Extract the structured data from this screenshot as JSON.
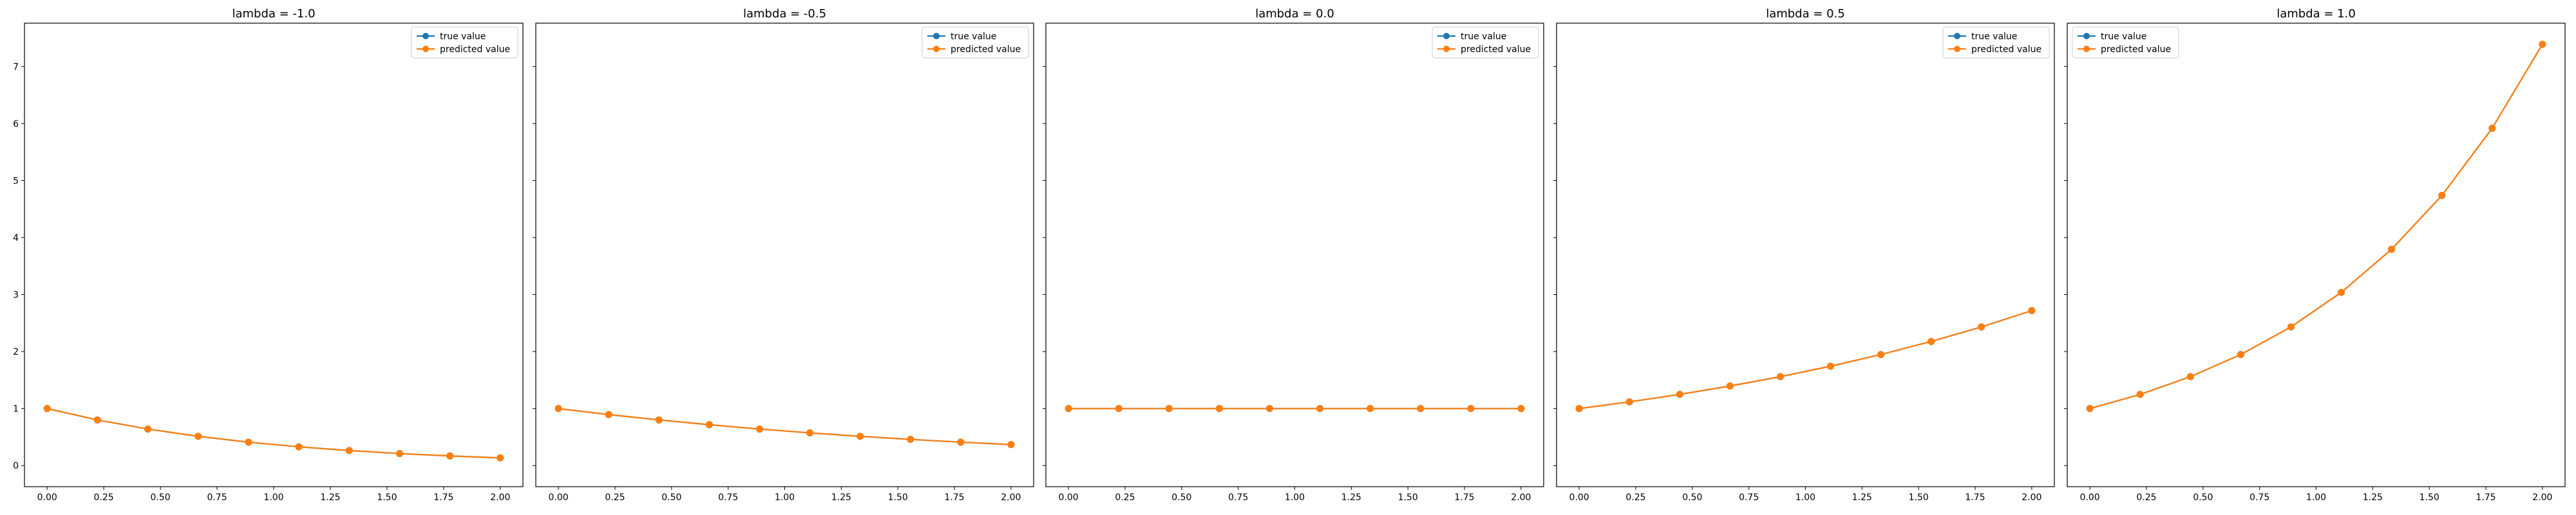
{
  "colors": {
    "true_value": "#1f77b4",
    "predicted_value": "#ff7f0e",
    "axes": "#000000",
    "legend_border": "#cccccc"
  },
  "chart_data": [
    {
      "type": "line",
      "title": "lambda = -1.0",
      "x": [
        0.0,
        0.2222,
        0.4444,
        0.6667,
        0.8889,
        1.1111,
        1.3333,
        1.5556,
        1.7778,
        2.0
      ],
      "series": [
        {
          "name": "true value",
          "values": [
            1.0,
            0.8007,
            0.6412,
            0.5134,
            0.4111,
            0.3292,
            0.2636,
            0.2111,
            0.169,
            0.1353
          ]
        },
        {
          "name": "predicted value",
          "values": [
            1.0,
            0.8007,
            0.6412,
            0.5134,
            0.4111,
            0.3292,
            0.2636,
            0.2111,
            0.169,
            0.1353
          ]
        }
      ],
      "xlim": [
        -0.1,
        2.1
      ],
      "ylim": [
        -0.37,
        7.76
      ],
      "xticks": [
        "0.00",
        "0.25",
        "0.50",
        "0.75",
        "1.00",
        "1.25",
        "1.50",
        "1.75",
        "2.00"
      ],
      "yticks": [
        "0",
        "1",
        "2",
        "3",
        "4",
        "5",
        "6",
        "7"
      ],
      "legend": "upper-right"
    },
    {
      "type": "line",
      "title": "lambda = -0.5",
      "x": [
        0.0,
        0.2222,
        0.4444,
        0.6667,
        0.8889,
        1.1111,
        1.3333,
        1.5556,
        1.7778,
        2.0
      ],
      "series": [
        {
          "name": "true value",
          "values": [
            1.0,
            0.8948,
            0.8007,
            0.7165,
            0.6412,
            0.5738,
            0.5134,
            0.4594,
            0.4111,
            0.3679
          ]
        },
        {
          "name": "predicted value",
          "values": [
            1.0,
            0.8948,
            0.8007,
            0.7165,
            0.6412,
            0.5738,
            0.5134,
            0.4594,
            0.4111,
            0.3679
          ]
        }
      ],
      "xlim": [
        -0.1,
        2.1
      ],
      "ylim": [
        -0.37,
        7.76
      ],
      "xticks": [
        "0.00",
        "0.25",
        "0.50",
        "0.75",
        "1.00",
        "1.25",
        "1.50",
        "1.75",
        "2.00"
      ],
      "legend": "upper-right"
    },
    {
      "type": "line",
      "title": "lambda = 0.0",
      "x": [
        0.0,
        0.2222,
        0.4444,
        0.6667,
        0.8889,
        1.1111,
        1.3333,
        1.5556,
        1.7778,
        2.0
      ],
      "series": [
        {
          "name": "true value",
          "values": [
            1.0,
            1.0,
            1.0,
            1.0,
            1.0,
            1.0,
            1.0,
            1.0,
            1.0,
            1.0
          ]
        },
        {
          "name": "predicted value",
          "values": [
            1.0,
            1.0,
            1.0,
            1.0,
            1.0,
            1.0,
            1.0,
            1.0,
            1.0,
            1.0
          ]
        }
      ],
      "xlim": [
        -0.1,
        2.1
      ],
      "ylim": [
        -0.37,
        7.76
      ],
      "xticks": [
        "0.00",
        "0.25",
        "0.50",
        "0.75",
        "1.00",
        "1.25",
        "1.50",
        "1.75",
        "2.00"
      ],
      "legend": "upper-right"
    },
    {
      "type": "line",
      "title": "lambda = 0.5",
      "x": [
        0.0,
        0.2222,
        0.4444,
        0.6667,
        0.8889,
        1.1111,
        1.3333,
        1.5556,
        1.7778,
        2.0
      ],
      "series": [
        {
          "name": "true value",
          "values": [
            1.0,
            1.1175,
            1.2488,
            1.3956,
            1.5596,
            1.7429,
            1.9477,
            2.1766,
            2.4324,
            2.7183
          ]
        },
        {
          "name": "predicted value",
          "values": [
            1.0,
            1.1175,
            1.2488,
            1.3956,
            1.5596,
            1.7429,
            1.9477,
            2.1766,
            2.4324,
            2.7183
          ]
        }
      ],
      "xlim": [
        -0.1,
        2.1
      ],
      "ylim": [
        -0.37,
        7.76
      ],
      "xticks": [
        "0.00",
        "0.25",
        "0.50",
        "0.75",
        "1.00",
        "1.25",
        "1.50",
        "1.75",
        "2.00"
      ],
      "legend": "upper-right"
    },
    {
      "type": "line",
      "title": "lambda = 1.0",
      "x": [
        0.0,
        0.2222,
        0.4444,
        0.6667,
        0.8889,
        1.1111,
        1.3333,
        1.5556,
        1.7778,
        2.0
      ],
      "series": [
        {
          "name": "true value",
          "values": [
            1.0,
            1.2488,
            1.5596,
            1.9477,
            2.4324,
            3.0377,
            3.7937,
            4.7377,
            5.9167,
            7.3891
          ]
        },
        {
          "name": "predicted value",
          "values": [
            1.0,
            1.2488,
            1.5596,
            1.9477,
            2.4324,
            3.0377,
            3.7937,
            4.7377,
            5.9167,
            7.3891
          ]
        }
      ],
      "xlim": [
        -0.1,
        2.1
      ],
      "ylim": [
        -0.37,
        7.76
      ],
      "xticks": [
        "0.00",
        "0.25",
        "0.50",
        "0.75",
        "1.00",
        "1.25",
        "1.50",
        "1.75",
        "2.00"
      ],
      "legend": "upper-left"
    }
  ]
}
